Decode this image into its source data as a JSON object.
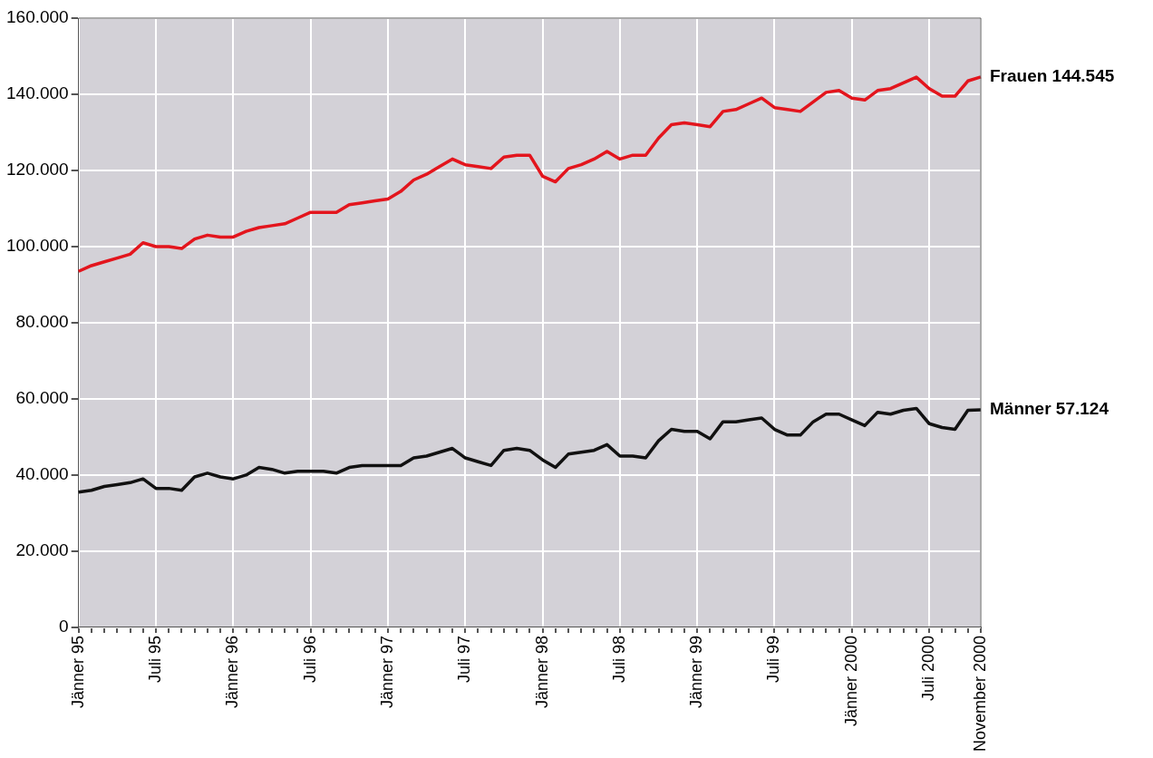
{
  "chart_data": {
    "type": "line",
    "categories": [
      "Jänner 95",
      null,
      null,
      null,
      null,
      null,
      "Juli 95",
      null,
      null,
      null,
      null,
      null,
      "Jänner 96",
      null,
      null,
      null,
      null,
      null,
      "Juli 96",
      null,
      null,
      null,
      null,
      null,
      "Jänner 97",
      null,
      null,
      null,
      null,
      null,
      "Juli 97",
      null,
      null,
      null,
      null,
      null,
      "Jänner 98",
      null,
      null,
      null,
      null,
      null,
      "Juli 98",
      null,
      null,
      null,
      null,
      null,
      "Jänner 99",
      null,
      null,
      null,
      null,
      null,
      "Juli 99",
      null,
      null,
      null,
      null,
      null,
      "Jänner 2000",
      null,
      null,
      null,
      null,
      null,
      "Juli 2000",
      null,
      null,
      null,
      "November 2000"
    ],
    "series": [
      {
        "color": "#e3151d",
        "values": [
          93500,
          95000,
          96000,
          97000,
          98000,
          101000,
          100000,
          100000,
          99500,
          102000,
          103000,
          102500,
          102500,
          104000,
          105000,
          105500,
          106000,
          107500,
          109000,
          109000,
          109000,
          111000,
          111500,
          112000,
          112500,
          114500,
          117500,
          119000,
          121000,
          123000,
          121500,
          121000,
          120500,
          123500,
          124000,
          124000,
          118500,
          117000,
          120500,
          121500,
          123000,
          125000,
          123000,
          124000,
          124000,
          128500,
          132000,
          132500,
          132000,
          131500,
          135500,
          136000,
          137500,
          139000,
          136500,
          136000,
          135500,
          138000,
          140500,
          141000,
          139000,
          138500,
          141000,
          141500,
          143000,
          144500,
          141500,
          139500,
          139500,
          143500,
          144545
        ]
      },
      {
        "color": "#111111",
        "values": [
          35500,
          36000,
          37000,
          37500,
          38000,
          39000,
          36500,
          36500,
          36000,
          39500,
          40500,
          39500,
          39000,
          40000,
          42000,
          41500,
          40500,
          41000,
          41000,
          41000,
          40500,
          42000,
          42500,
          42500,
          42500,
          42500,
          44500,
          45000,
          46000,
          47000,
          44500,
          43500,
          42500,
          46500,
          47000,
          46500,
          44000,
          42000,
          45500,
          46000,
          46500,
          48000,
          45000,
          45000,
          44500,
          49000,
          52000,
          51500,
          51500,
          49500,
          54000,
          54000,
          54500,
          55000,
          52000,
          50500,
          50500,
          54000,
          56000,
          56000,
          54500,
          53000,
          56500,
          56000,
          57000,
          57500,
          53500,
          52500,
          52000,
          57000,
          57124
        ]
      }
    ],
    "annotations": [
      {
        "text": "Frauen 144.545",
        "x": "November 2000",
        "y": 144545
      },
      {
        "text": "Männer 57.124",
        "x": "November 2000",
        "y": 57124
      }
    ],
    "ylim": [
      0,
      160000
    ],
    "yticks": [
      0,
      {
        "value": 20000,
        "label": "20.000"
      },
      {
        "value": 40000,
        "label": "40.000"
      },
      {
        "value": 60000,
        "label": "60.000"
      },
      {
        "value": 80000,
        "label": "80.000"
      },
      {
        "value": 100000,
        "label": "100.000"
      },
      {
        "value": 120000,
        "label": "120.000"
      },
      {
        "value": 140000,
        "label": "140.000"
      },
      {
        "value": 160000,
        "label": "160.000"
      }
    ],
    "grid": true,
    "legend": false,
    "marker": "none",
    "line_style": "solid"
  }
}
